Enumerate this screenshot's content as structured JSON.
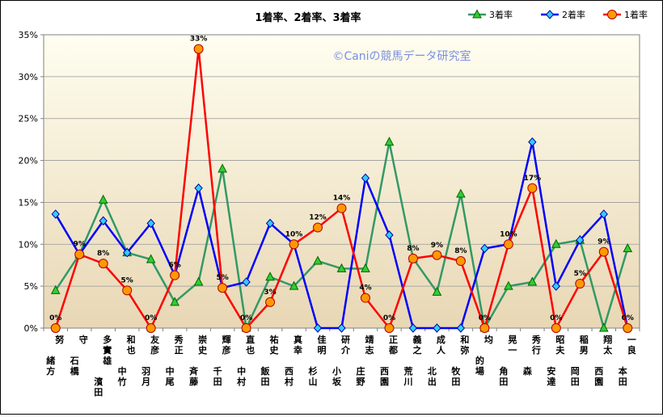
{
  "chart_data": {
    "type": "line",
    "title": "1着率、2着率、3着率",
    "watermark": "©Caniの競馬データ研究室",
    "ylim": [
      0,
      35
    ],
    "yticks": [
      "0%",
      "5%",
      "10%",
      "15%",
      "20%",
      "25%",
      "30%",
      "35%"
    ],
    "categories": [
      "緒方 努",
      "石橋 守",
      "濱田 多實雄",
      "中竹 和也",
      "羽月 友彦",
      "中尾 秀正",
      "斉藤 崇史",
      "千田 輝彦",
      "中村 直也",
      "飯田 祐史",
      "西村 真幸",
      "杉山 佳明",
      "小坂 研介",
      "庄野 靖志",
      "西園 正都",
      "荒川 義之",
      "北出 成人",
      "牧田 和弥",
      "的場 均",
      "角田 晃一",
      "森 秀行",
      "安達 昭夫",
      "岡田 稲男",
      "西園 翔太",
      "本田 一良"
    ],
    "series": [
      {
        "name": "3着率",
        "color": "#339966",
        "marker": "triangle",
        "marker_fill": "#33cc33",
        "values": [
          4.5,
          8.8,
          15.3,
          9.0,
          8.2,
          3.1,
          5.5,
          19.0,
          0,
          6.1,
          5.0,
          8.0,
          7.1,
          7.1,
          22.2,
          8.3,
          4.3,
          16.0,
          0,
          5.0,
          5.5,
          10.0,
          10.5,
          0,
          9.5
        ]
      },
      {
        "name": "2着率",
        "color": "#0000ff",
        "marker": "diamond",
        "marker_fill": "#33ccff",
        "values": [
          13.6,
          8.8,
          12.8,
          9.0,
          12.5,
          6.3,
          16.7,
          4.8,
          5.5,
          12.5,
          10.0,
          0,
          0,
          17.9,
          11.1,
          0,
          0,
          0,
          9.5,
          10.0,
          22.2,
          5.0,
          10.5,
          13.6,
          0
        ]
      },
      {
        "name": "1着率",
        "color": "#ff0000",
        "marker": "circle",
        "marker_fill": "#ff9900",
        "values": [
          0,
          8.8,
          7.7,
          4.5,
          0,
          6.3,
          33.3,
          4.8,
          0,
          3.1,
          10.0,
          12.0,
          14.3,
          3.6,
          0,
          8.3,
          8.7,
          8.0,
          0,
          10.0,
          16.7,
          0,
          5.3,
          9.1,
          0
        ],
        "labels": [
          "0%",
          "9%",
          "8%",
          "5%",
          "0%",
          "6%",
          "33%",
          "5%",
          "0%",
          "3%",
          "10%",
          "12%",
          "14%",
          "4%",
          "0%",
          "8%",
          "9%",
          "8%",
          "0%",
          "10%",
          "17%",
          "0%",
          "5%",
          "9%",
          "0%"
        ]
      }
    ],
    "legend_position": "top-right",
    "grid": true,
    "colors": {
      "plot_bg_top": "#fffef0",
      "plot_bg_bottom": "#e8d7b4",
      "grid": "#999999"
    }
  }
}
